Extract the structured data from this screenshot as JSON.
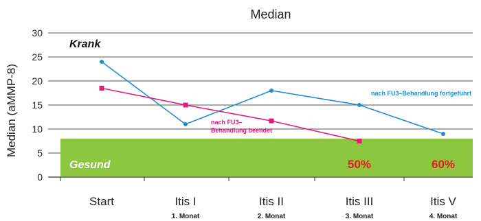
{
  "chart_data": {
    "type": "line",
    "title": "Median",
    "ylabel": "Median (aMMP-8)",
    "xlabel": "",
    "ylim": [
      0,
      30
    ],
    "yticks": [
      0,
      5,
      10,
      15,
      20,
      25,
      30
    ],
    "grid": true,
    "categories": [
      "Start",
      "Itis I",
      "Itis II",
      "Itis III",
      "Itis V"
    ],
    "category_sublabels": [
      "",
      "1. Monat",
      "2. Monat",
      "3. Monat",
      "4. Monat"
    ],
    "series": [
      {
        "name": "nach FU3-Behandlung fortgeführt",
        "color": "#1e8fd0",
        "marker": "circle",
        "values": [
          24,
          11,
          18,
          15,
          9
        ]
      },
      {
        "name": "nach FU3-Behandlung beendet",
        "color": "#e5197d",
        "marker": "square",
        "values": [
          18.5,
          15,
          11.7,
          7.5,
          null
        ]
      }
    ],
    "zones": {
      "healthy": {
        "label": "Gesund",
        "from": 0,
        "to": 8,
        "color": "#8dc63f"
      },
      "sick_label": "Krank"
    },
    "percent_annotations": [
      {
        "category": "Itis III",
        "text": "50%"
      },
      {
        "category": "Itis V",
        "text": "60%"
      }
    ],
    "note_blue": "nach FU3–Behandlung fortgeführt",
    "note_pink_line1": "nach FU3–",
    "note_pink_line2": "Behandlung beendet",
    "percent_color": "#e0201b"
  }
}
